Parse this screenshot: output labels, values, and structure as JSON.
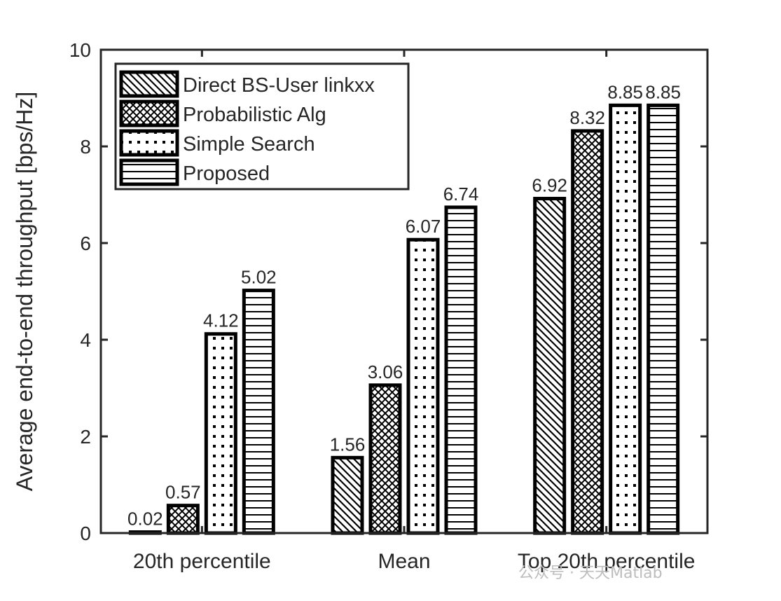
{
  "chart_data": {
    "type": "bar",
    "categories": [
      "20th percentile",
      "Mean",
      "Top 20th percentile"
    ],
    "series": [
      {
        "name": "Direct BS-User linkxx",
        "values": [
          0.02,
          1.56,
          6.92
        ],
        "pattern": "diagonal"
      },
      {
        "name": "Probabilistic Alg",
        "values": [
          0.57,
          3.06,
          8.32
        ],
        "pattern": "crosshatch"
      },
      {
        "name": "Simple Search",
        "values": [
          4.12,
          6.07,
          8.85
        ],
        "pattern": "dots"
      },
      {
        "name": "Proposed",
        "values": [
          5.02,
          6.74,
          8.85
        ],
        "pattern": "horizontal"
      }
    ],
    "data_labels": [
      [
        "0.02",
        "1.56",
        "6.92"
      ],
      [
        "0.57",
        "3.06",
        "8.32"
      ],
      [
        "4.12",
        "6.07",
        "8.85"
      ],
      [
        "5.02",
        "6.74",
        "8.85"
      ]
    ],
    "ylabel": "Average end-to-end throughput [bps/Hz]",
    "xlabel": "",
    "ylim": [
      0,
      10
    ],
    "yticks": [
      "0",
      "2",
      "4",
      "6",
      "8",
      "10"
    ],
    "legend": "top-left",
    "grid": false,
    "colors": {
      "bar_edge": "#000000",
      "bar_fill": "#ffffff",
      "text": "#262626"
    }
  },
  "watermark": "公众号 · 天天Matlab"
}
